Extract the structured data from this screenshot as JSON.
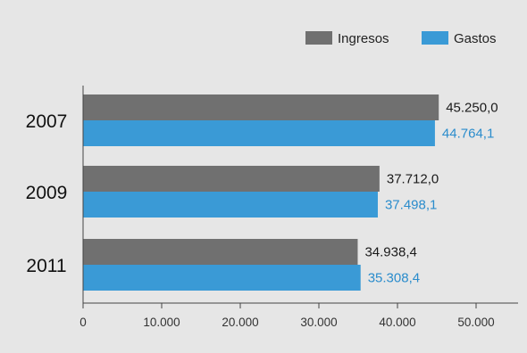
{
  "chart_data": {
    "type": "bar",
    "orientation": "horizontal",
    "categories": [
      "2007",
      "2009",
      "2011"
    ],
    "series": [
      {
        "name": "Ingresos",
        "color": "#707070",
        "label_color": "#1a1a1a",
        "values": [
          45250.0,
          37712.0,
          34938.4
        ],
        "labels": [
          "45.250,0",
          "37.712,0",
          "34.938,4"
        ]
      },
      {
        "name": "Gastos",
        "color": "#3a9ad6",
        "label_color": "#2a8ccc",
        "values": [
          44764.1,
          37498.1,
          35308.4
        ],
        "labels": [
          "44.764,1",
          "37.498,1",
          "35.308,4"
        ]
      }
    ],
    "xlim": [
      0,
      55000
    ],
    "xticks": [
      0,
      10000,
      20000,
      30000,
      40000,
      50000
    ],
    "xtick_labels": [
      "0",
      "10.000",
      "20.000",
      "30.000",
      "40.000",
      "50.000"
    ],
    "title": "",
    "xlabel": "",
    "ylabel": "",
    "grid": false,
    "legend_position": "top-right"
  },
  "colors": {
    "background": "#e6e6e6",
    "axis": "#444444"
  }
}
